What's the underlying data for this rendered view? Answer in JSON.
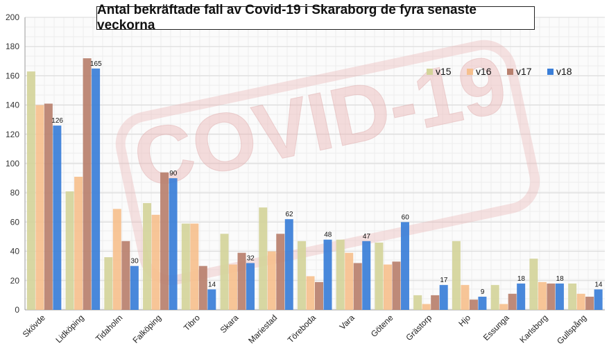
{
  "chart_data": {
    "type": "bar",
    "title": "Antal bekräftade fall av Covid-19 i Skaraborg de fyra senaste veckorna",
    "xlabel": "",
    "ylabel": "",
    "ylim": [
      0,
      200
    ],
    "yticks": [
      0,
      20,
      40,
      60,
      80,
      100,
      120,
      140,
      160,
      180,
      200
    ],
    "grid": true,
    "legend_position": "top-right",
    "background_watermark": "COVID-19",
    "categories": [
      "Skövde",
      "Lidköping",
      "Tidaholm",
      "Falköping",
      "Tibro",
      "Skara",
      "Mariestad",
      "Töreboda",
      "Vara",
      "Götene",
      "Grästorp",
      "Hjo",
      "Essunga",
      "Karlsborg",
      "Gullspång"
    ],
    "series": [
      {
        "name": "v15",
        "color": "#d4d49a",
        "values": [
          163,
          81,
          36,
          73,
          59,
          52,
          70,
          47,
          48,
          46,
          10,
          47,
          17,
          35,
          18
        ]
      },
      {
        "name": "v16",
        "color": "#f6c08e",
        "values": [
          140,
          91,
          69,
          65,
          59,
          31,
          40,
          23,
          39,
          31,
          4,
          17,
          4,
          19,
          11
        ]
      },
      {
        "name": "v17",
        "color": "#b8806e",
        "values": [
          141,
          172,
          47,
          94,
          30,
          39,
          52,
          19,
          32,
          33,
          10,
          7,
          11,
          18,
          9
        ]
      },
      {
        "name": "v18",
        "color": "#3a7ed8",
        "values": [
          126,
          165,
          30,
          90,
          14,
          32,
          62,
          48,
          47,
          60,
          17,
          9,
          18,
          18,
          14
        ]
      }
    ],
    "data_labels_series": "v18",
    "data_labels": [
      "126",
      "165",
      "30",
      "90",
      "14",
      "32",
      "62",
      "48",
      "47",
      "60",
      "17",
      "9",
      "18",
      "18",
      "14"
    ]
  }
}
